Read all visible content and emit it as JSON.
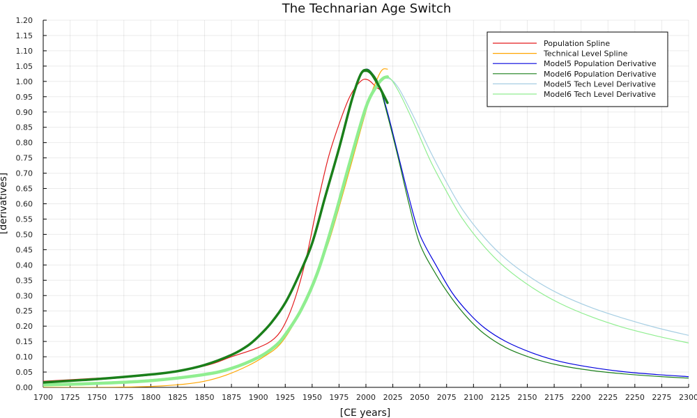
{
  "chart_data": {
    "type": "line",
    "title": "The Technarian Age Switch",
    "xlabel": "[CE years]",
    "ylabel": "[derivatives]",
    "xlim": [
      1700,
      2300
    ],
    "ylim": [
      0,
      1.2
    ],
    "xticks": [
      1700,
      1725,
      1750,
      1775,
      1800,
      1825,
      1850,
      1875,
      1900,
      1925,
      1950,
      1975,
      2000,
      2025,
      2050,
      2075,
      2100,
      2125,
      2150,
      2175,
      2200,
      2225,
      2250,
      2275,
      2300
    ],
    "xtick_labels": [
      "1700",
      "1725",
      "1750",
      "1775",
      "1800",
      "1825",
      "1850",
      "1875",
      "1900",
      "1925",
      "1950",
      "1975",
      "2000",
      "2025",
      "2050",
      "2075",
      "2100",
      "2125",
      "2150",
      "2175",
      "2200",
      "2225",
      "2250",
      "2275",
      "2300"
    ],
    "yticks": [
      0,
      0.05,
      0.1,
      0.15,
      0.2,
      0.25,
      0.3,
      0.35,
      0.4,
      0.45,
      0.5,
      0.55,
      0.6,
      0.65,
      0.7,
      0.75,
      0.8,
      0.85,
      0.9,
      0.95,
      1.0,
      1.05,
      1.1,
      1.15,
      1.2
    ],
    "ytick_labels": [
      "0.00",
      "0.05",
      "0.10",
      "0.15",
      "0.20",
      "0.25",
      "0.30",
      "0.35",
      "0.40",
      "0.45",
      "0.50",
      "0.55",
      "0.60",
      "0.65",
      "0.70",
      "0.75",
      "0.80",
      "0.85",
      "0.90",
      "0.95",
      "1.00",
      "1.05",
      "1.10",
      "1.15",
      "1.20"
    ],
    "grid": true,
    "legend_position": "top-right",
    "series": [
      {
        "name": "Population Spline",
        "color": "#e31a1c",
        "x": [
          1700,
          1750,
          1800,
          1850,
          1875,
          1900,
          1915,
          1925,
          1935,
          1945,
          1955,
          1965,
          1975,
          1985,
          1995,
          2002,
          2010,
          2015
        ],
        "y": [
          0.02,
          0.03,
          0.04,
          0.07,
          0.1,
          0.13,
          0.16,
          0.21,
          0.3,
          0.43,
          0.6,
          0.75,
          0.86,
          0.95,
          1.0,
          1.005,
          0.98,
          0.97
        ]
      },
      {
        "name": "Technical Level Spline",
        "color": "#ffa500",
        "x": [
          1700,
          1750,
          1800,
          1830,
          1850,
          1870,
          1890,
          1905,
          1920,
          1935,
          1950,
          1965,
          1980,
          1995,
          2005,
          2012,
          2016,
          2020
        ],
        "y": [
          0.0,
          0.0,
          0.003,
          0.01,
          0.02,
          0.04,
          0.07,
          0.1,
          0.14,
          0.22,
          0.33,
          0.47,
          0.65,
          0.84,
          0.96,
          1.02,
          1.04,
          1.04
        ]
      },
      {
        "name": "Model5 Population Derivative",
        "color": "#0000dd",
        "x": [
          1700,
          1750,
          1800,
          1825,
          1850,
          1875,
          1890,
          1900,
          1912,
          1925,
          1937,
          1950,
          1962,
          1975,
          1987,
          1995,
          2000,
          2005,
          2012,
          2020,
          2030,
          2040,
          2050,
          2065,
          2080,
          2095,
          2110,
          2130,
          2155,
          2180,
          2210,
          2240,
          2270,
          2300
        ],
        "y": [
          0.018,
          0.028,
          0.042,
          0.053,
          0.073,
          0.105,
          0.135,
          0.165,
          0.21,
          0.275,
          0.36,
          0.47,
          0.62,
          0.78,
          0.94,
          1.02,
          1.04,
          1.03,
          0.99,
          0.9,
          0.76,
          0.62,
          0.5,
          0.4,
          0.31,
          0.245,
          0.195,
          0.15,
          0.112,
          0.085,
          0.065,
          0.051,
          0.042,
          0.035
        ]
      },
      {
        "name": "Model6 Population Derivative",
        "color": "#1a7f1a",
        "x": [
          1700,
          1750,
          1800,
          1825,
          1850,
          1875,
          1890,
          1900,
          1912,
          1925,
          1937,
          1950,
          1962,
          1975,
          1987,
          1995,
          2000,
          2005,
          2012,
          2020,
          2030,
          2040,
          2050,
          2065,
          2080,
          2095,
          2110,
          2130,
          2155,
          2180,
          2210,
          2240,
          2270,
          2300
        ],
        "y": [
          0.015,
          0.025,
          0.04,
          0.052,
          0.072,
          0.105,
          0.135,
          0.165,
          0.21,
          0.275,
          0.36,
          0.47,
          0.62,
          0.78,
          0.94,
          1.025,
          1.04,
          1.03,
          0.99,
          0.89,
          0.75,
          0.6,
          0.47,
          0.37,
          0.29,
          0.225,
          0.175,
          0.13,
          0.095,
          0.072,
          0.055,
          0.044,
          0.036,
          0.03
        ]
      },
      {
        "name": "Model5 Tech Level Derivative",
        "color": "#a6cee3",
        "x": [
          1700,
          1750,
          1800,
          1850,
          1875,
          1900,
          1915,
          1925,
          1940,
          1955,
          1970,
          1985,
          2000,
          2010,
          2020,
          2030,
          2045,
          2060,
          2075,
          2090,
          2110,
          2130,
          2155,
          2180,
          2210,
          2240,
          2270,
          2300
        ],
        "y": [
          0.01,
          0.016,
          0.025,
          0.045,
          0.065,
          0.1,
          0.135,
          0.175,
          0.26,
          0.38,
          0.55,
          0.74,
          0.92,
          0.99,
          1.01,
          0.98,
          0.88,
          0.77,
          0.67,
          0.58,
          0.49,
          0.42,
          0.355,
          0.305,
          0.26,
          0.225,
          0.195,
          0.17
        ]
      },
      {
        "name": "Model6 Tech Level Derivative",
        "color": "#90ee90",
        "x": [
          1700,
          1750,
          1800,
          1850,
          1875,
          1900,
          1915,
          1925,
          1940,
          1955,
          1970,
          1985,
          2000,
          2010,
          2020,
          2030,
          2045,
          2060,
          2075,
          2090,
          2110,
          2130,
          2155,
          2180,
          2210,
          2240,
          2270,
          2300
        ],
        "y": [
          0.01,
          0.016,
          0.025,
          0.045,
          0.065,
          0.1,
          0.135,
          0.175,
          0.26,
          0.38,
          0.55,
          0.74,
          0.92,
          0.99,
          1.015,
          0.97,
          0.86,
          0.74,
          0.64,
          0.55,
          0.46,
          0.39,
          0.325,
          0.275,
          0.23,
          0.195,
          0.168,
          0.145
        ]
      }
    ],
    "thick_overlays": [
      {
        "color": "#90ee90",
        "x": [
          1700,
          1750,
          1800,
          1850,
          1875,
          1900,
          1915,
          1925,
          1940,
          1955,
          1970,
          1985,
          2000,
          2010,
          2016,
          2020
        ],
        "y": [
          0.008,
          0.013,
          0.022,
          0.042,
          0.062,
          0.098,
          0.133,
          0.172,
          0.255,
          0.375,
          0.545,
          0.735,
          0.915,
          0.985,
          1.01,
          1.015
        ]
      },
      {
        "color": "#1a7f1a",
        "x": [
          1700,
          1750,
          1800,
          1825,
          1850,
          1875,
          1890,
          1900,
          1912,
          1925,
          1937,
          1950,
          1962,
          1975,
          1987,
          1995,
          2000,
          2005,
          2012,
          2020
        ],
        "y": [
          0.016,
          0.027,
          0.042,
          0.053,
          0.073,
          0.106,
          0.136,
          0.166,
          0.211,
          0.276,
          0.361,
          0.471,
          0.621,
          0.781,
          0.941,
          1.022,
          1.035,
          1.025,
          0.985,
          0.93
        ]
      }
    ]
  }
}
